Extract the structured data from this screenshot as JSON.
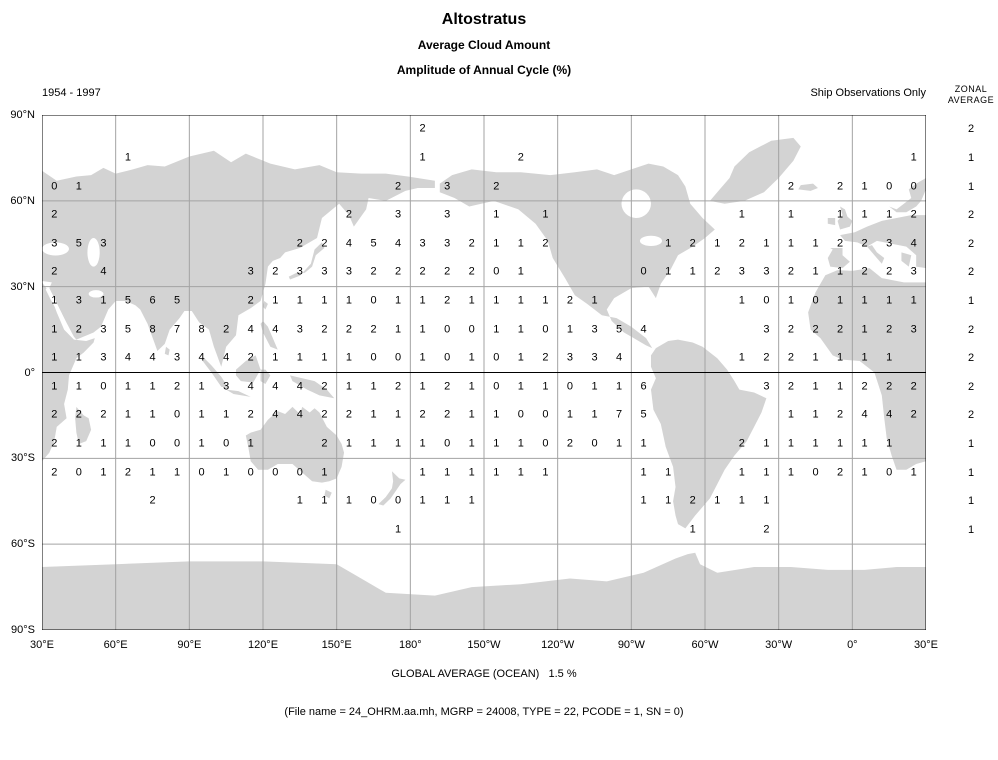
{
  "header": {
    "title": "Altostratus",
    "subtitle1": "Average Cloud Amount",
    "subtitle2": "Amplitude of Annual Cycle (%)",
    "period": "1954 - 1997",
    "source_note": "Ship Observations Only",
    "zonal_label_line1": "ZONAL",
    "zonal_label_line2": "AVERAGE"
  },
  "footer": {
    "global_average": "GLOBAL AVERAGE (OCEAN)   1.5 %",
    "file_info": "(File name = 24_OHRM.aa.mh, MGRP = 24008, TYPE = 22, PCODE = 1, SN = 0)"
  },
  "colors": {
    "background": "#ffffff",
    "land": "#d3d3d3",
    "grid_line": "#a3a3a3",
    "map_border": "#000000",
    "equator_line": "#000000",
    "text": "#000000"
  },
  "chart_data": {
    "type": "heatmap",
    "title": "Altostratus - Average Cloud Amount - Amplitude of Annual Cycle (%)",
    "period": "1954 - 1997",
    "source": "Ship Observations Only",
    "global_average_ocean_pct": 1.5,
    "lon_start_deg_east": 30,
    "cell_size_deg": 10,
    "lat_ticks": [
      "90°N",
      "60°N",
      "30°N",
      "0°",
      "30°S",
      "60°S",
      "90°S"
    ],
    "lon_ticks": [
      "30°E",
      "60°E",
      "90°E",
      "120°E",
      "150°E",
      "180°",
      "150°W",
      "120°W",
      "90°W",
      "60°W",
      "30°W",
      "0°",
      "30°E"
    ],
    "rows": [
      {
        "lat": 85,
        "zonal_average": 2,
        "cells": {
          "15": 2
        }
      },
      {
        "lat": 75,
        "zonal_average": 1,
        "cells": {
          "3": 1,
          "15": 1,
          "19": 2,
          "35": 1
        }
      },
      {
        "lat": 65,
        "zonal_average": 1,
        "cells": {
          "0": 0,
          "1": 1,
          "14": 2,
          "16": 3,
          "18": 2,
          "30": 2,
          "32": 2,
          "33": 1,
          "34": 0,
          "35": 0
        }
      },
      {
        "lat": 55,
        "zonal_average": 2,
        "cells": {
          "0": 2,
          "12": 2,
          "14": 3,
          "16": 3,
          "18": 1,
          "20": 1,
          "28": 1,
          "30": 1,
          "32": 1,
          "33": 1,
          "34": 1,
          "35": 2
        }
      },
      {
        "lat": 45,
        "zonal_average": 2,
        "cells": {
          "0": 3,
          "1": 5,
          "2": 3,
          "10": 2,
          "11": 2,
          "12": 4,
          "13": 5,
          "14": 4,
          "15": 3,
          "16": 3,
          "17": 2,
          "18": 1,
          "19": 1,
          "20": 2,
          "25": 1,
          "26": 2,
          "27": 1,
          "28": 2,
          "29": 1,
          "30": 1,
          "31": 1,
          "32": 2,
          "33": 2,
          "34": 3,
          "35": 4
        }
      },
      {
        "lat": 35,
        "zonal_average": 2,
        "cells": {
          "0": 2,
          "2": 4,
          "8": 3,
          "9": 2,
          "10": 3,
          "11": 3,
          "12": 3,
          "13": 2,
          "14": 2,
          "15": 2,
          "16": 2,
          "17": 2,
          "18": 0,
          "19": 1,
          "24": 0,
          "25": 1,
          "26": 1,
          "27": 2,
          "28": 3,
          "29": 3,
          "30": 2,
          "31": 1,
          "32": 1,
          "33": 2,
          "34": 2,
          "35": 3
        }
      },
      {
        "lat": 25,
        "zonal_average": 1,
        "cells": {
          "0": 1,
          "1": 3,
          "2": 1,
          "3": 5,
          "4": 6,
          "5": 5,
          "8": 2,
          "9": 1,
          "10": 1,
          "11": 1,
          "12": 1,
          "13": 0,
          "14": 1,
          "15": 1,
          "16": 2,
          "17": 1,
          "18": 1,
          "19": 1,
          "20": 1,
          "21": 2,
          "22": 1,
          "28": 1,
          "29": 0,
          "30": 1,
          "31": 0,
          "32": 1,
          "33": 1,
          "34": 1,
          "35": 1
        }
      },
      {
        "lat": 15,
        "zonal_average": 2,
        "cells": {
          "0": 1,
          "1": 2,
          "2": 3,
          "3": 5,
          "4": 8,
          "5": 7,
          "6": 8,
          "7": 2,
          "8": 4,
          "9": 4,
          "10": 3,
          "11": 2,
          "12": 2,
          "13": 2,
          "14": 1,
          "15": 1,
          "16": 0,
          "17": 0,
          "18": 1,
          "19": 1,
          "20": 0,
          "21": 1,
          "22": 3,
          "23": 5,
          "24": 4,
          "29": 3,
          "30": 2,
          "31": 2,
          "32": 2,
          "33": 1,
          "34": 2,
          "35": 3
        }
      },
      {
        "lat": 5,
        "zonal_average": 2,
        "cells": {
          "0": 1,
          "1": 1,
          "2": 3,
          "3": 4,
          "4": 4,
          "5": 3,
          "6": 4,
          "7": 4,
          "8": 2,
          "9": 1,
          "10": 1,
          "11": 1,
          "12": 1,
          "13": 0,
          "14": 0,
          "15": 1,
          "16": 0,
          "17": 1,
          "18": 0,
          "19": 1,
          "20": 2,
          "21": 3,
          "22": 3,
          "23": 4,
          "28": 1,
          "29": 2,
          "30": 2,
          "31": 1,
          "32": 1,
          "33": 1,
          "34": 1
        }
      },
      {
        "lat": -5,
        "zonal_average": 2,
        "cells": {
          "0": 1,
          "1": 1,
          "2": 0,
          "3": 1,
          "4": 1,
          "5": 2,
          "6": 1,
          "7": 3,
          "8": 4,
          "9": 4,
          "10": 4,
          "11": 2,
          "12": 1,
          "13": 1,
          "14": 2,
          "15": 1,
          "16": 2,
          "17": 1,
          "18": 0,
          "19": 1,
          "20": 1,
          "21": 0,
          "22": 1,
          "23": 1,
          "24": 6,
          "29": 3,
          "30": 2,
          "31": 1,
          "32": 1,
          "33": 2,
          "34": 2,
          "35": 2
        }
      },
      {
        "lat": -15,
        "zonal_average": 2,
        "cells": {
          "0": 2,
          "1": 2,
          "2": 2,
          "3": 1,
          "4": 1,
          "5": 0,
          "6": 1,
          "7": 1,
          "8": 2,
          "9": 4,
          "10": 4,
          "11": 2,
          "12": 2,
          "13": 1,
          "14": 1,
          "15": 2,
          "16": 2,
          "17": 1,
          "18": 1,
          "19": 0,
          "20": 0,
          "21": 1,
          "22": 1,
          "23": 7,
          "24": 5,
          "30": 1,
          "31": 1,
          "32": 2,
          "33": 4,
          "34": 4,
          "35": 2
        }
      },
      {
        "lat": -25,
        "zonal_average": 1,
        "cells": {
          "0": 2,
          "1": 1,
          "2": 1,
          "3": 1,
          "4": 0,
          "5": 0,
          "6": 1,
          "7": 0,
          "8": 1,
          "11": 2,
          "12": 1,
          "13": 1,
          "14": 1,
          "15": 1,
          "16": 0,
          "17": 1,
          "18": 1,
          "19": 1,
          "20": 0,
          "21": 2,
          "22": 0,
          "23": 1,
          "24": 1,
          "28": 2,
          "29": 1,
          "30": 1,
          "31": 1,
          "32": 1,
          "33": 1,
          "34": 1
        }
      },
      {
        "lat": -35,
        "zonal_average": 1,
        "cells": {
          "0": 2,
          "1": 0,
          "2": 1,
          "3": 2,
          "4": 1,
          "5": 1,
          "6": 0,
          "7": 1,
          "8": 0,
          "9": 0,
          "10": 0,
          "11": 1,
          "15": 1,
          "16": 1,
          "17": 1,
          "18": 1,
          "19": 1,
          "20": 1,
          "24": 1,
          "25": 1,
          "28": 1,
          "29": 1,
          "30": 1,
          "31": 0,
          "32": 2,
          "33": 1,
          "34": 0,
          "35": 1
        }
      },
      {
        "lat": -45,
        "zonal_average": 1,
        "cells": {
          "4": 2,
          "10": 1,
          "11": 1,
          "12": 1,
          "13": 0,
          "14": 0,
          "15": 1,
          "16": 1,
          "17": 1,
          "24": 1,
          "25": 1,
          "26": 2,
          "27": 1,
          "28": 1,
          "29": 1
        }
      },
      {
        "lat": -55,
        "zonal_average": 1,
        "cells": {
          "14": 1,
          "26": 1,
          "29": 2
        }
      }
    ],
    "layout": {
      "projection": "equirectangular, Pacific-centered, 30E to 30E",
      "grid": "30 degree graticule",
      "legend_position": "right (zonal averages)"
    }
  }
}
